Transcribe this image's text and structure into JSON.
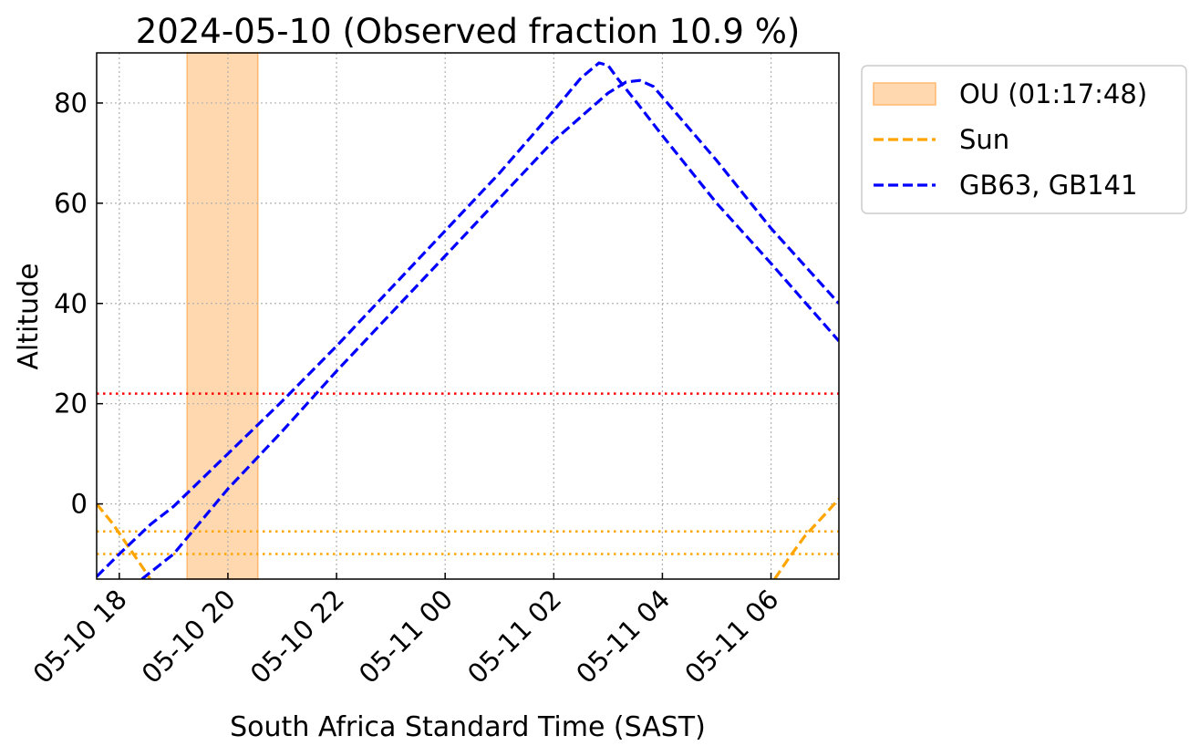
{
  "chart_data": {
    "type": "line",
    "title": "2024-05-10 (Observed fraction 10.9 %)",
    "xlabel": "South Africa Standard Time (SAST)",
    "ylabel": "Altitude",
    "xlim": [
      "2024-05-10 17:35",
      "2024-05-11 07:15"
    ],
    "ylim": [
      -15,
      90
    ],
    "yticks": [
      0,
      20,
      40,
      60,
      80
    ],
    "xticks": [
      {
        "t": "2024-05-10 18:00",
        "label": "05-10 18"
      },
      {
        "t": "2024-05-10 20:00",
        "label": "05-10 20"
      },
      {
        "t": "2024-05-10 22:00",
        "label": "05-10 22"
      },
      {
        "t": "2024-05-11 00:00",
        "label": "05-11 00"
      },
      {
        "t": "2024-05-11 02:00",
        "label": "05-11 02"
      },
      {
        "t": "2024-05-11 04:00",
        "label": "05-11 04"
      },
      {
        "t": "2024-05-11 06:00",
        "label": "05-11 06"
      }
    ],
    "grid": true,
    "legend_position": "outside upper-right",
    "legend": [
      {
        "label": "OU (01:17:48)",
        "kind": "patch",
        "color": "#ffd8b0",
        "edge": "#ffb870"
      },
      {
        "label": "Sun",
        "kind": "dashed",
        "color": "#ffa500"
      },
      {
        "label": "GB63, GB141",
        "kind": "dashed",
        "color": "#0000ff"
      }
    ],
    "shaded_span": {
      "start": "2024-05-10 19:15",
      "end": "2024-05-10 20:33",
      "color": "#ffd8b0",
      "edge": "#ffb870"
    },
    "hlines": [
      {
        "y": 22,
        "color": "#ff0000",
        "style": "dotted"
      },
      {
        "y": -5.5,
        "color": "#ffa500",
        "style": "dotted"
      },
      {
        "y": -10,
        "color": "#ffa500",
        "style": "dotted"
      }
    ],
    "series": [
      {
        "name": "Sun",
        "color": "#ffa500",
        "segments": [
          [
            {
              "t": "2024-05-10 17:35",
              "y": 0
            },
            {
              "t": "2024-05-10 17:53",
              "y": -4
            },
            {
              "t": "2024-05-10 18:10",
              "y": -8.5
            },
            {
              "t": "2024-05-10 18:27",
              "y": -13
            },
            {
              "t": "2024-05-10 18:34",
              "y": -15
            }
          ],
          [
            {
              "t": "2024-05-11 06:04",
              "y": -15
            },
            {
              "t": "2024-05-11 06:19",
              "y": -11
            },
            {
              "t": "2024-05-11 06:37",
              "y": -6.5
            },
            {
              "t": "2024-05-11 07:00",
              "y": -2
            },
            {
              "t": "2024-05-11 07:15",
              "y": 1
            }
          ]
        ]
      },
      {
        "name": "GB63",
        "color": "#0000ff",
        "segments": [
          [
            {
              "t": "2024-05-10 17:35",
              "y": -14.5
            },
            {
              "t": "2024-05-10 18:00",
              "y": -10
            },
            {
              "t": "2024-05-10 18:35",
              "y": -4
            },
            {
              "t": "2024-05-10 19:00",
              "y": -0.5
            },
            {
              "t": "2024-05-10 20:00",
              "y": 10
            },
            {
              "t": "2024-05-10 21:00",
              "y": 20.5
            },
            {
              "t": "2024-05-10 22:00",
              "y": 31.5
            },
            {
              "t": "2024-05-10 23:00",
              "y": 43
            },
            {
              "t": "2024-05-11 00:00",
              "y": 54.5
            },
            {
              "t": "2024-05-11 01:00",
              "y": 66
            },
            {
              "t": "2024-05-11 02:00",
              "y": 78.5
            },
            {
              "t": "2024-05-11 02:30",
              "y": 85
            },
            {
              "t": "2024-05-11 02:50",
              "y": 88
            },
            {
              "t": "2024-05-11 03:00",
              "y": 87.5
            },
            {
              "t": "2024-05-11 03:10",
              "y": 85
            },
            {
              "t": "2024-05-11 03:30",
              "y": 80.5
            },
            {
              "t": "2024-05-11 04:00",
              "y": 73.5
            },
            {
              "t": "2024-05-11 05:00",
              "y": 60
            },
            {
              "t": "2024-05-11 06:00",
              "y": 48
            },
            {
              "t": "2024-05-11 07:15",
              "y": 32.5
            }
          ]
        ]
      },
      {
        "name": "GB141",
        "color": "#0000ff",
        "segments": [
          [
            {
              "t": "2024-05-10 18:25",
              "y": -15
            },
            {
              "t": "2024-05-10 19:00",
              "y": -10
            },
            {
              "t": "2024-05-10 20:00",
              "y": 3
            },
            {
              "t": "2024-05-10 21:00",
              "y": 14.5
            },
            {
              "t": "2024-05-10 22:00",
              "y": 26.5
            },
            {
              "t": "2024-05-10 23:00",
              "y": 38
            },
            {
              "t": "2024-05-11 00:00",
              "y": 49.5
            },
            {
              "t": "2024-05-11 01:00",
              "y": 61
            },
            {
              "t": "2024-05-11 02:00",
              "y": 72.5
            },
            {
              "t": "2024-05-11 03:00",
              "y": 82
            },
            {
              "t": "2024-05-11 03:20",
              "y": 84.2
            },
            {
              "t": "2024-05-11 03:35",
              "y": 84.5
            },
            {
              "t": "2024-05-11 03:50",
              "y": 83.3
            },
            {
              "t": "2024-05-11 04:15",
              "y": 78
            },
            {
              "t": "2024-05-11 05:00",
              "y": 68.5
            },
            {
              "t": "2024-05-11 06:00",
              "y": 55
            },
            {
              "t": "2024-05-11 07:15",
              "y": 40
            }
          ]
        ]
      }
    ]
  }
}
